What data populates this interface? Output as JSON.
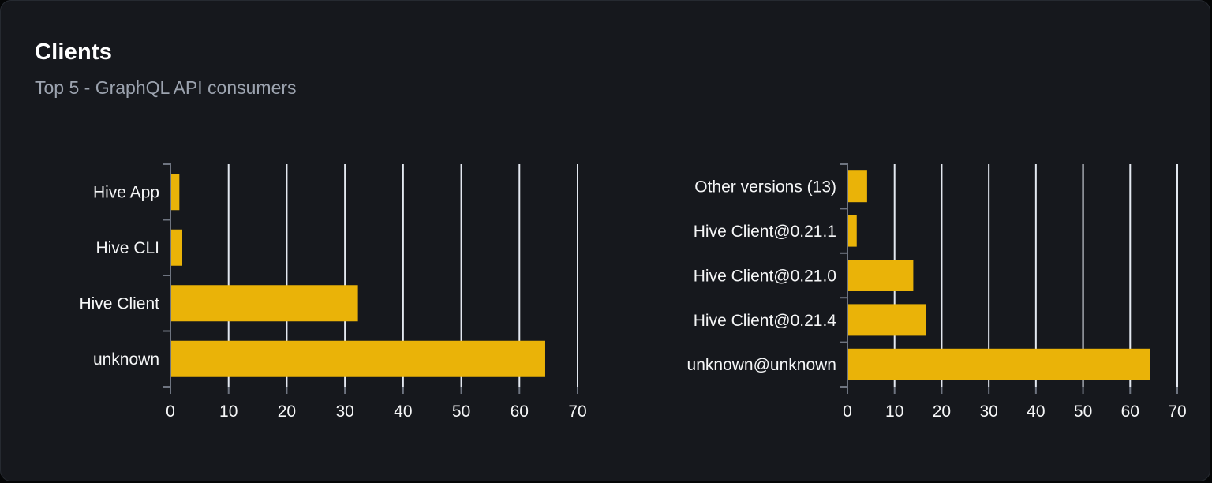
{
  "panel": {
    "title": "Clients",
    "subtitle": "Top 5 - GraphQL API consumers"
  },
  "colors": {
    "bar": "#eab308",
    "gridline": "#e3e8f0",
    "axis": "#6e7480",
    "category_text": "#f5f6f7",
    "tick_text": "#f5f6f7",
    "title_text": "#ffffff",
    "subtitle_text": "#9ca3af",
    "panel_bg": "#16181d",
    "page_bg": "#050607"
  },
  "chart_data": [
    {
      "type": "bar",
      "orientation": "horizontal",
      "name": "clients-by-name",
      "categories": [
        "Hive App",
        "Hive CLI",
        "Hive Client",
        "unknown"
      ],
      "values": [
        1.4,
        1.9,
        32.1,
        64.3
      ],
      "xlim": [
        0,
        70
      ],
      "xticks": [
        0,
        10,
        20,
        30,
        40,
        50,
        60,
        70
      ],
      "grid": "vertical",
      "legend": false
    },
    {
      "type": "bar",
      "orientation": "horizontal",
      "name": "clients-by-version",
      "categories": [
        "Other versions (13)",
        "Hive Client@0.21.1",
        "Hive Client@0.21.0",
        "Hive Client@0.21.4",
        "unknown@unknown"
      ],
      "values": [
        4.0,
        1.8,
        13.8,
        16.5,
        64.1
      ],
      "xlim": [
        0,
        70
      ],
      "xticks": [
        0,
        10,
        20,
        30,
        40,
        50,
        60,
        70
      ],
      "grid": "vertical",
      "legend": false
    }
  ]
}
